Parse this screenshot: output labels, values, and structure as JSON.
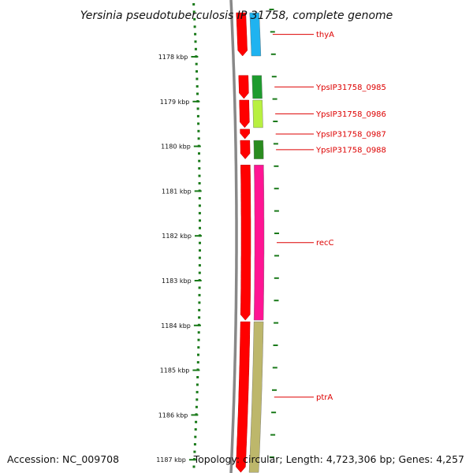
{
  "title": "Yersinia pseudotuberculosis IP 31758, complete genome",
  "accession": "Accession: NC_009708",
  "topology": "Topology: circular; Length: 4,723,306 bp; Genes: 4,257",
  "scale": {
    "unit": "kbp",
    "ticks": [
      1178,
      1179,
      1180,
      1181,
      1182,
      1183,
      1184,
      1185,
      1186,
      1187
    ],
    "tick_labels": [
      "1178 kbp",
      "1179 kbp",
      "1180 kbp",
      "1181 kbp",
      "1182 kbp",
      "1183 kbp",
      "1184 kbp",
      "1185 kbp",
      "1186 kbp",
      "1187 kbp"
    ]
  },
  "genes": [
    {
      "name": "thyA",
      "start": 1177.0,
      "end": 1178.0,
      "strand": "reverse",
      "color": "#1fb3f0"
    },
    {
      "name": "YpsIP31758_0985",
      "start": 1178.4,
      "end": 1178.95,
      "strand": "reverse",
      "color": "#1e9b2e"
    },
    {
      "name": "YpsIP31758_0986",
      "start": 1178.95,
      "end": 1179.6,
      "strand": "reverse",
      "color": "#b8f040"
    },
    {
      "name": "YpsIP31758_0987",
      "start": 1179.6,
      "end": 1179.85,
      "strand": "reverse",
      "color": "#ffffff"
    },
    {
      "name": "YpsIP31758_0988",
      "start": 1179.85,
      "end": 1180.3,
      "strand": "reverse",
      "color": "#2a8c1f"
    },
    {
      "name": "recC",
      "start": 1180.4,
      "end": 1183.9,
      "strand": "reverse",
      "color": "#ff1493"
    },
    {
      "name": "ptrA",
      "start": 1183.9,
      "end": 1187.3,
      "strand": "reverse",
      "color": "#bdb76b"
    }
  ],
  "colors": {
    "backbone": "#888888",
    "cds": "#ff0000",
    "tick": "#1a7a1a",
    "label": "#dd0000"
  }
}
